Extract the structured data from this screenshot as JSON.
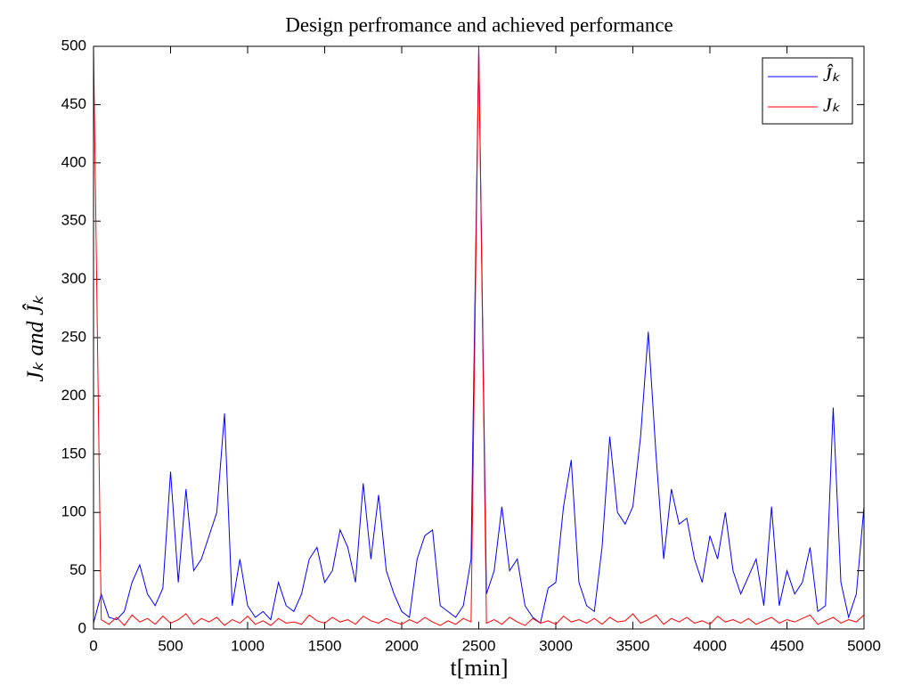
{
  "chart_data": {
    "type": "line",
    "title": "Design perfromance and achieved performance",
    "xlabel": "t[min]",
    "ylabel": "Jₖ and Ĵₖ",
    "x": [
      0,
      50,
      100,
      150,
      200,
      250,
      300,
      350,
      400,
      450,
      500,
      550,
      600,
      650,
      700,
      750,
      800,
      850,
      900,
      950,
      1000,
      1050,
      1100,
      1150,
      1200,
      1250,
      1300,
      1350,
      1400,
      1450,
      1500,
      1550,
      1600,
      1650,
      1700,
      1750,
      1800,
      1850,
      1900,
      1950,
      2000,
      2050,
      2100,
      2150,
      2200,
      2250,
      2300,
      2350,
      2400,
      2450,
      2500,
      2550,
      2600,
      2650,
      2700,
      2750,
      2800,
      2850,
      2900,
      2950,
      3000,
      3050,
      3100,
      3150,
      3200,
      3250,
      3300,
      3350,
      3400,
      3450,
      3500,
      3550,
      3600,
      3650,
      3700,
      3750,
      3800,
      3850,
      3900,
      3950,
      4000,
      4050,
      4100,
      4150,
      4200,
      4250,
      4300,
      4350,
      4400,
      4450,
      4500,
      4550,
      4600,
      4650,
      4700,
      4750,
      4800,
      4850,
      4900,
      4950,
      5000
    ],
    "series": [
      {
        "name": "Ĵₖ",
        "color": "#0000ff",
        "values": [
          5,
          30,
          10,
          8,
          15,
          40,
          55,
          30,
          20,
          35,
          135,
          40,
          120,
          50,
          60,
          80,
          100,
          185,
          20,
          60,
          20,
          10,
          15,
          8,
          40,
          20,
          15,
          30,
          60,
          70,
          40,
          50,
          85,
          70,
          40,
          125,
          60,
          115,
          50,
          30,
          15,
          10,
          60,
          80,
          85,
          20,
          15,
          10,
          20,
          60,
          500,
          30,
          50,
          105,
          50,
          60,
          20,
          10,
          5,
          35,
          40,
          105,
          145,
          40,
          20,
          15,
          70,
          165,
          100,
          90,
          105,
          165,
          255,
          150,
          60,
          120,
          90,
          95,
          60,
          40,
          80,
          60,
          100,
          50,
          30,
          45,
          60,
          20,
          105,
          20,
          50,
          30,
          40,
          70,
          15,
          20,
          190,
          40,
          10,
          30,
          105
        ]
      },
      {
        "name": "Jₖ",
        "color": "#ff0000",
        "values": [
          500,
          8,
          4,
          10,
          3,
          12,
          6,
          9,
          4,
          11,
          5,
          8,
          13,
          4,
          9,
          6,
          10,
          3,
          8,
          5,
          11,
          4,
          7,
          3,
          9,
          5,
          6,
          4,
          12,
          7,
          5,
          10,
          6,
          8,
          4,
          11,
          7,
          5,
          9,
          6,
          4,
          8,
          5,
          10,
          6,
          3,
          7,
          4,
          9,
          6,
          500,
          5,
          8,
          4,
          10,
          6,
          3,
          9,
          5,
          7,
          4,
          11,
          6,
          8,
          5,
          9,
          4,
          10,
          6,
          7,
          13,
          5,
          8,
          12,
          4,
          9,
          6,
          10,
          5,
          7,
          4,
          11,
          6,
          8,
          5,
          9,
          4,
          7,
          10,
          5,
          8,
          6,
          9,
          12,
          4,
          7,
          10,
          5,
          8,
          6,
          12
        ]
      }
    ],
    "xlim": [
      0,
      5000
    ],
    "xticks": [
      0,
      500,
      1000,
      1500,
      2000,
      2500,
      3000,
      3500,
      4000,
      4500,
      5000
    ],
    "ylim": [
      0,
      500
    ],
    "yticks": [
      0,
      50,
      100,
      150,
      200,
      250,
      300,
      350,
      400,
      450,
      500
    ],
    "legend": "upper right"
  }
}
